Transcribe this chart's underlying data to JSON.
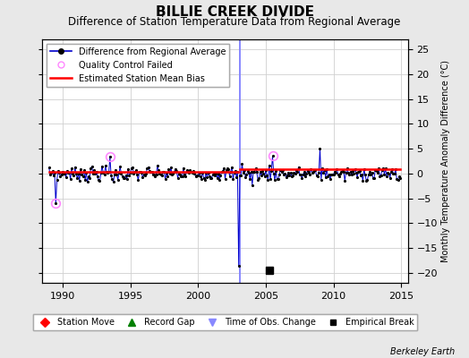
{
  "title": "BILLIE CREEK DIVIDE",
  "subtitle": "Difference of Station Temperature Data from Regional Average",
  "ylabel": "Monthly Temperature Anomaly Difference (°C)",
  "xlim": [
    1988.5,
    2015.5
  ],
  "ylim": [
    -22,
    27
  ],
  "yticks": [
    -20,
    -15,
    -10,
    -5,
    0,
    5,
    10,
    15,
    20,
    25
  ],
  "xticks": [
    1990,
    1995,
    2000,
    2005,
    2010,
    2015
  ],
  "background_color": "#e8e8e8",
  "plot_bg_color": "#ffffff",
  "grid_color": "#d0d0d0",
  "line_color_main": "#0000cc",
  "line_color_bias": "#ff0000",
  "qc_failed_color": "#ff88ff",
  "time_of_obs_color": "#8888ff",
  "time_of_obs_x": 2003.08,
  "empirical_break_x": 2005.25,
  "empirical_break_y": -19.5,
  "bias_change_x": 2003.08,
  "bias_before": 0.25,
  "bias_after": 0.9,
  "watermark": "Berkeley Earth",
  "title_fontsize": 11,
  "subtitle_fontsize": 8.5,
  "tick_fontsize": 8,
  "ylabel_fontsize": 7
}
